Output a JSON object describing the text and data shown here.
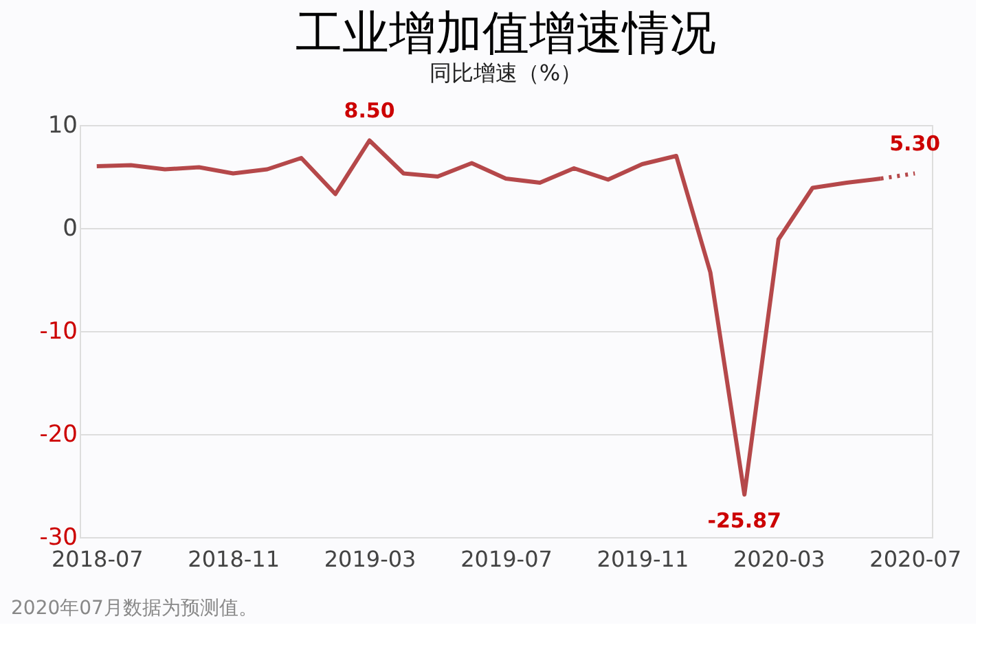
{
  "chart_data": {
    "type": "line",
    "title": "工业增加值增速情况",
    "subtitle": "同比增速（%）",
    "categories": [
      "2018-07",
      null,
      null,
      null,
      "2018-11",
      null,
      null,
      null,
      "2019-03",
      null,
      null,
      null,
      "2019-07",
      null,
      null,
      null,
      "2019-11",
      null,
      null,
      null,
      "2020-03",
      null,
      null,
      null,
      "2020-07"
    ],
    "series": [
      {
        "color": "#b5484a",
        "line_style": "solid",
        "values": [
          6.0,
          6.1,
          5.7,
          5.9,
          5.3,
          5.7,
          6.8,
          3.3,
          8.5,
          5.3,
          5.0,
          6.3,
          4.8,
          4.4,
          5.8,
          4.7,
          6.2,
          7.0,
          -4.3,
          -25.87,
          -1.1,
          3.9,
          4.4,
          4.8,
          null
        ],
        "value_labels": [
          null,
          null,
          null,
          null,
          null,
          null,
          null,
          null,
          "8.50",
          null,
          null,
          null,
          null,
          null,
          null,
          null,
          null,
          null,
          null,
          "-25.87",
          null,
          null,
          null,
          null,
          null
        ]
      },
      {
        "color": "#b5484a",
        "line_style": "dotted",
        "values": [
          null,
          null,
          null,
          null,
          null,
          null,
          null,
          null,
          null,
          null,
          null,
          null,
          null,
          null,
          null,
          null,
          null,
          null,
          null,
          null,
          null,
          null,
          null,
          4.8,
          5.3
        ],
        "value_labels": [
          null,
          null,
          null,
          null,
          null,
          null,
          null,
          null,
          null,
          null,
          null,
          null,
          null,
          null,
          null,
          null,
          null,
          null,
          null,
          null,
          null,
          null,
          null,
          null,
          "5.30"
        ]
      }
    ],
    "ylim": [
      -30,
      10
    ],
    "yticks": [
      -30,
      -20,
      -10,
      0,
      10
    ],
    "grid": "y",
    "marker": "none",
    "annotations": [
      "2020年07月数据为预测值。"
    ]
  }
}
